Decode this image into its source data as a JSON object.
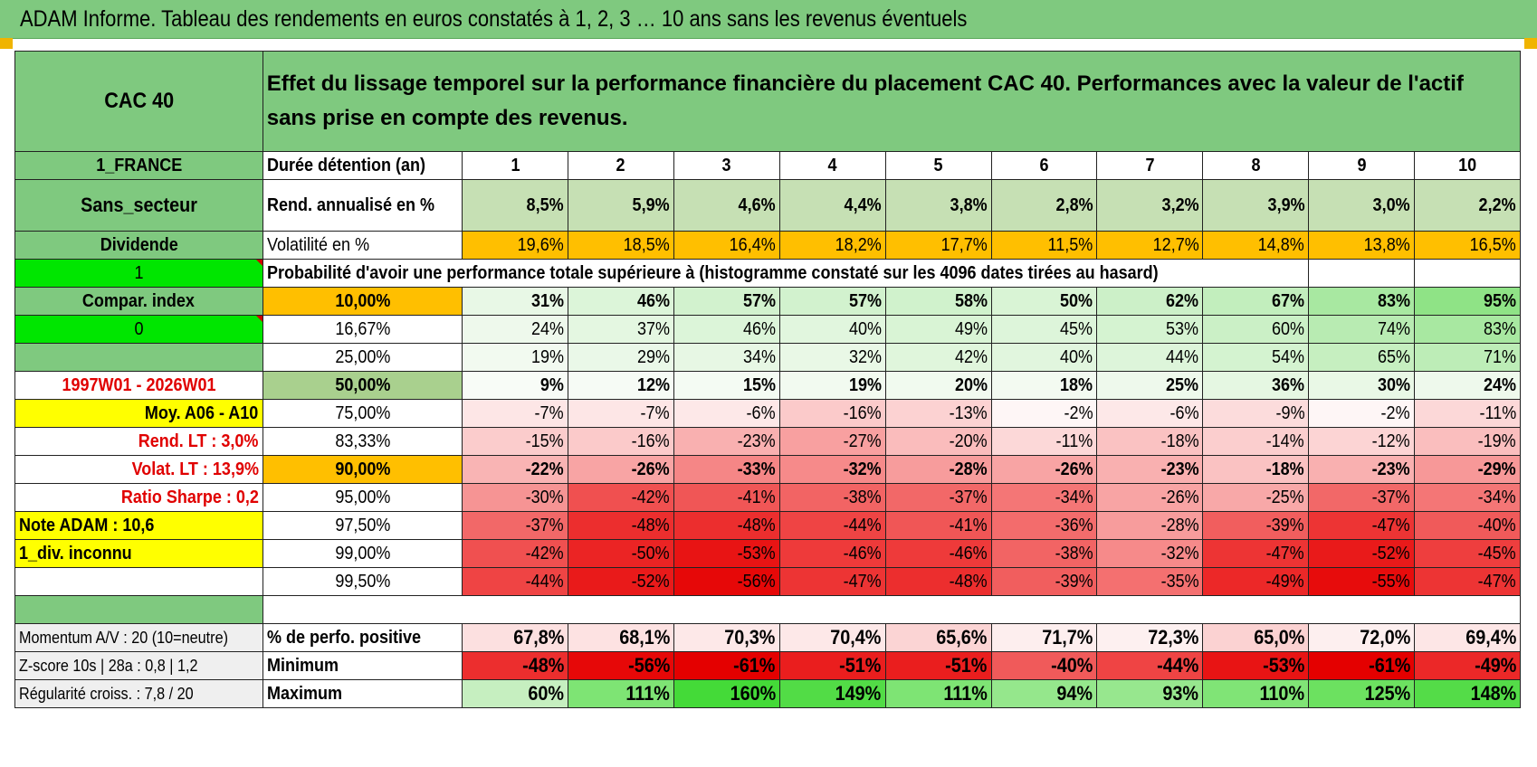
{
  "title": "ADAM Informe. Tableau des rendements en euros constatés à 1, 2, 3 … 10 ans sans les revenus éventuels",
  "colors": {
    "header_green": "#7fc97f",
    "yellow": "#ffff00",
    "bright_green": "#00e600",
    "orange": "#ffbf00",
    "label_red": "#e00000"
  },
  "left": {
    "asset": "CAC 40",
    "country": "1_FRANCE",
    "sector": "Sans_secteur",
    "dividend": "Dividende",
    "one": "1",
    "compar": "Compar. index",
    "zero": "0",
    "period": "1997W01 - 2026W01",
    "moy": "Moy. A06 - A10",
    "rend_lt": "Rend. LT :   3,0%",
    "volat_lt": "Volat. LT :   13,9%",
    "sharpe": "Ratio Sharpe :    0,2",
    "note": "Note ADAM : 10,6",
    "div": "1_div. inconnu",
    "momentum": "Momentum A/V : 20 (10=neutre)",
    "zscore": "Z-score 10s | 28a : 0,8 | 1,2",
    "regularite": "Régularité croiss. : 7,8 / 20"
  },
  "description": "Effet du lissage temporel sur la performance financière du placement CAC 40. Performances avec la valeur de l'actif sans prise en compte des revenus.",
  "duration_label": "Durée détention (an)",
  "years": [
    "1",
    "2",
    "3",
    "4",
    "5",
    "6",
    "7",
    "8",
    "9",
    "10"
  ],
  "rend_label": "Rend. annualisé en %",
  "rend": [
    "8,5%",
    "5,9%",
    "4,6%",
    "4,4%",
    "3,8%",
    "2,8%",
    "3,2%",
    "3,9%",
    "3,0%",
    "2,2%"
  ],
  "vol_label": "Volatilité en %",
  "vol": [
    "19,6%",
    "18,5%",
    "16,4%",
    "18,2%",
    "17,7%",
    "11,5%",
    "12,7%",
    "14,8%",
    "13,8%",
    "16,5%"
  ],
  "prob_title": "Probabilité d'avoir une performance totale supérieure à (histogramme constaté sur les 4096 dates tirées au hasard)",
  "quantiles": [
    {
      "label": "10,00%",
      "values": [
        "31%",
        "46%",
        "57%",
        "57%",
        "58%",
        "50%",
        "62%",
        "67%",
        "83%",
        "95%"
      ],
      "bg": [
        "#e8f8e6",
        "#dcf5d9",
        "#d2f2ce",
        "#d2f2ce",
        "#d0f2cc",
        "#d9f4d5",
        "#ccf0c8",
        "#c2eebd",
        "#a8e8a1",
        "#8fe386"
      ],
      "bold": true,
      "labelbg": "#ffbf00"
    },
    {
      "label": "16,67%",
      "values": [
        "24%",
        "37%",
        "46%",
        "40%",
        "49%",
        "45%",
        "53%",
        "60%",
        "74%",
        "83%"
      ],
      "bg": [
        "#eef9ec",
        "#e4f7e1",
        "#dcf5d9",
        "#e1f6de",
        "#d9f4d5",
        "#ddf5da",
        "#d5f3d1",
        "#cbf0c6",
        "#b8ebb2",
        "#a8e8a1"
      ],
      "bold": false,
      "labelbg": "#ffffff"
    },
    {
      "label": "25,00%",
      "values": [
        "19%",
        "29%",
        "34%",
        "32%",
        "42%",
        "40%",
        "44%",
        "54%",
        "65%",
        "71%"
      ],
      "bg": [
        "#f2faf0",
        "#eaf8e8",
        "#e7f7e4",
        "#e9f8e6",
        "#e0f6dc",
        "#e1f6de",
        "#ddf5da",
        "#d4f3d0",
        "#c6efc0",
        "#bdedb7"
      ],
      "bold": false,
      "labelbg": "#ffffff"
    },
    {
      "label": "50,00%",
      "values": [
        "9%",
        "12%",
        "15%",
        "19%",
        "20%",
        "18%",
        "25%",
        "36%",
        "30%",
        "24%"
      ],
      "bg": [
        "#f8fcf7",
        "#f6fbf5",
        "#f4fbf3",
        "#f2faf0",
        "#f1faef",
        "#f3faf1",
        "#eef9ec",
        "#e5f7e2",
        "#e9f8e6",
        "#eef9ec"
      ],
      "bold": true,
      "big": true,
      "labelbg": "#a9d08e"
    },
    {
      "label": "75,00%",
      "values": [
        "-7%",
        "-7%",
        "-6%",
        "-16%",
        "-13%",
        "-2%",
        "-6%",
        "-9%",
        "-2%",
        "-11%"
      ],
      "bg": [
        "#fde6e6",
        "#fde6e6",
        "#fde8e8",
        "#fbcaca",
        "#fcd2d2",
        "#fef6f6",
        "#fde8e8",
        "#fcdcdc",
        "#fef6f6",
        "#fcd8d8"
      ],
      "bold": false,
      "labelbg": "#ffffff"
    },
    {
      "label": "83,33%",
      "values": [
        "-15%",
        "-16%",
        "-23%",
        "-27%",
        "-20%",
        "-11%",
        "-18%",
        "-14%",
        "-12%",
        "-19%"
      ],
      "bg": [
        "#fbcccc",
        "#fbcaca",
        "#f9b0b0",
        "#f8a0a0",
        "#fabcbc",
        "#fcd8d8",
        "#fac2c2",
        "#fbcece",
        "#fcd4d4",
        "#fabebe"
      ],
      "bold": false,
      "labelbg": "#ffffff"
    },
    {
      "label": "90,00%",
      "values": [
        "-22%",
        "-26%",
        "-33%",
        "-32%",
        "-28%",
        "-26%",
        "-23%",
        "-18%",
        "-23%",
        "-29%"
      ],
      "bg": [
        "#f9b4b4",
        "#f8a4a4",
        "#f58686",
        "#f68a8a",
        "#f79c9c",
        "#f8a4a4",
        "#f9b0b0",
        "#fac2c2",
        "#f9b0b0",
        "#f79898"
      ],
      "bold": true,
      "labelbg": "#ffbf00"
    },
    {
      "label": "95,00%",
      "values": [
        "-30%",
        "-42%",
        "-41%",
        "-38%",
        "-37%",
        "-34%",
        "-26%",
        "-25%",
        "-37%",
        "-34%"
      ],
      "bg": [
        "#f69494",
        "#f05050",
        "#f05656",
        "#f26464",
        "#f26868",
        "#f47676",
        "#f8a4a4",
        "#f8a8a8",
        "#f26868",
        "#f47676"
      ],
      "bold": false,
      "labelbg": "#ffffff"
    },
    {
      "label": "97,50%",
      "values": [
        "-37%",
        "-48%",
        "-48%",
        "-44%",
        "-41%",
        "-36%",
        "-28%",
        "-39%",
        "-47%",
        "-40%"
      ],
      "bg": [
        "#f26868",
        "#ec2e2e",
        "#ec2e2e",
        "#ef4444",
        "#f05656",
        "#f36c6c",
        "#f79c9c",
        "#f15e5e",
        "#ed3434",
        "#f05a5a"
      ],
      "bold": false,
      "labelbg": "#ffffff"
    },
    {
      "label": "99,00%",
      "values": [
        "-42%",
        "-50%",
        "-53%",
        "-46%",
        "-46%",
        "-38%",
        "-32%",
        "-47%",
        "-52%",
        "-45%"
      ],
      "bg": [
        "#f05050",
        "#eb2424",
        "#e81414",
        "#ee3a3a",
        "#ee3a3a",
        "#f26464",
        "#f68a8a",
        "#ed3434",
        "#e91a1a",
        "#ee3e3e"
      ],
      "bold": false,
      "labelbg": "#ffffff"
    },
    {
      "label": "99,50%",
      "values": [
        "-44%",
        "-52%",
        "-56%",
        "-47%",
        "-48%",
        "-39%",
        "-35%",
        "-49%",
        "-55%",
        "-47%"
      ],
      "bg": [
        "#ef4444",
        "#e91a1a",
        "#e60808",
        "#ed3434",
        "#ec2e2e",
        "#f15e5e",
        "#f47070",
        "#ec2828",
        "#e70c0c",
        "#ed3434"
      ],
      "bold": false,
      "labelbg": "#ffffff"
    }
  ],
  "positive_label": "% de perfo. positive",
  "positive": [
    "67,8%",
    "68,1%",
    "70,3%",
    "70,4%",
    "65,6%",
    "71,7%",
    "72,3%",
    "65,0%",
    "72,0%",
    "69,4%"
  ],
  "positive_bg": [
    "#fce0e0",
    "#fde2e2",
    "#fde8e8",
    "#fde8e8",
    "#fbd4d4",
    "#fdeeee",
    "#fdf0f0",
    "#fbd2d2",
    "#fdefef",
    "#fde6e6"
  ],
  "min_label": "Minimum",
  "minimum": [
    "-48%",
    "-56%",
    "-61%",
    "-51%",
    "-51%",
    "-40%",
    "-44%",
    "-53%",
    "-61%",
    "-49%"
  ],
  "min_bg": [
    "#ec2e2e",
    "#e60808",
    "#e40000",
    "#ea1e1e",
    "#ea1e1e",
    "#f05a5a",
    "#ef4444",
    "#e81414",
    "#e40000",
    "#eb2828"
  ],
  "max_label": "Maximum",
  "maximum": [
    "60%",
    "111%",
    "160%",
    "149%",
    "111%",
    "94%",
    "93%",
    "110%",
    "125%",
    "148%"
  ],
  "max_bg": [
    "#c6efc0",
    "#7ee474",
    "#44da38",
    "#52dc46",
    "#7ee474",
    "#95e78c",
    "#97e78e",
    "#80e476",
    "#6ce160",
    "#54dc48"
  ]
}
